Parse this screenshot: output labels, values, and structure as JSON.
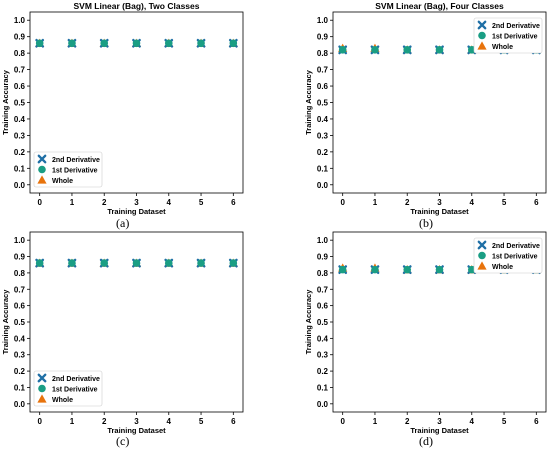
{
  "figure": {
    "marker_colors": {
      "2nd Derivative": "#1f6fa5",
      "1st Derivative": "#1a9e84",
      "Whole": "#e8730c"
    },
    "marker_shapes": {
      "2nd Derivative": "x-cross",
      "1st Derivative": "circle",
      "Whole": "triangle-up"
    }
  },
  "chart_data": [
    {
      "panel_label": "(a)",
      "type": "scatter",
      "title": "SVM Linear (Bag), Two Classes",
      "xlabel": "Training Dataset",
      "ylabel": "Training Accuracy",
      "x": [
        0,
        1,
        2,
        3,
        4,
        5,
        6
      ],
      "xlim": [
        -0.3,
        6.3
      ],
      "ylim": [
        -0.05,
        1.05
      ],
      "xticks": [
        0,
        1,
        2,
        3,
        4,
        5,
        6
      ],
      "yticks": [
        0.0,
        0.1,
        0.2,
        0.3,
        0.4,
        0.5,
        0.6,
        0.7,
        0.8,
        0.9,
        1.0
      ],
      "grid": false,
      "legend_position": "bottom-left",
      "series": [
        {
          "name": "2nd Derivative",
          "values": [
            0.86,
            0.86,
            0.86,
            0.86,
            0.86,
            0.86,
            0.86
          ]
        },
        {
          "name": "1st Derivative",
          "values": [
            0.86,
            0.86,
            0.86,
            0.86,
            0.86,
            0.86,
            0.86
          ]
        },
        {
          "name": "Whole",
          "values": [
            0.86,
            0.86,
            0.86,
            0.86,
            0.86,
            0.86,
            0.86
          ]
        }
      ]
    },
    {
      "panel_label": "(b)",
      "type": "scatter",
      "title": "SVM Linear (Bag), Four Classes",
      "xlabel": "Training Dataset",
      "ylabel": "Training Accuracy",
      "x": [
        0,
        1,
        2,
        3,
        4,
        5,
        6
      ],
      "xlim": [
        -0.3,
        6.3
      ],
      "ylim": [
        -0.05,
        1.05
      ],
      "xticks": [
        0,
        1,
        2,
        3,
        4,
        5,
        6
      ],
      "yticks": [
        0.0,
        0.1,
        0.2,
        0.3,
        0.4,
        0.5,
        0.6,
        0.7,
        0.8,
        0.9,
        1.0
      ],
      "grid": false,
      "legend_position": "top-right",
      "series": [
        {
          "name": "2nd Derivative",
          "values": [
            0.82,
            0.82,
            0.82,
            0.82,
            0.82,
            0.82,
            0.82
          ]
        },
        {
          "name": "1st Derivative",
          "values": [
            0.82,
            0.82,
            0.82,
            0.82,
            0.82,
            0.82,
            0.82
          ]
        },
        {
          "name": "Whole",
          "values": [
            0.83,
            0.83,
            0.82,
            0.82,
            0.82,
            0.82,
            0.82
          ]
        }
      ]
    },
    {
      "panel_label": "(c)",
      "type": "scatter",
      "title": "",
      "xlabel": "Training Dataset",
      "ylabel": "Training Accuracy",
      "x": [
        0,
        1,
        2,
        3,
        4,
        5,
        6
      ],
      "xlim": [
        -0.3,
        6.3
      ],
      "ylim": [
        -0.05,
        1.05
      ],
      "xticks": [
        0,
        1,
        2,
        3,
        4,
        5,
        6
      ],
      "yticks": [
        0.0,
        0.1,
        0.2,
        0.3,
        0.4,
        0.5,
        0.6,
        0.7,
        0.8,
        0.9,
        1.0
      ],
      "grid": false,
      "legend_position": "bottom-left",
      "series": [
        {
          "name": "2nd Derivative",
          "values": [
            0.86,
            0.86,
            0.86,
            0.86,
            0.86,
            0.86,
            0.86
          ]
        },
        {
          "name": "1st Derivative",
          "values": [
            0.86,
            0.86,
            0.86,
            0.86,
            0.86,
            0.86,
            0.86
          ]
        },
        {
          "name": "Whole",
          "values": [
            0.86,
            0.86,
            0.86,
            0.86,
            0.86,
            0.86,
            0.86
          ]
        }
      ]
    },
    {
      "panel_label": "(d)",
      "type": "scatter",
      "title": "",
      "xlabel": "Training Dataset",
      "ylabel": "Training Accuracy",
      "x": [
        0,
        1,
        2,
        3,
        4,
        5,
        6
      ],
      "xlim": [
        -0.3,
        6.3
      ],
      "ylim": [
        -0.05,
        1.05
      ],
      "xticks": [
        0,
        1,
        2,
        3,
        4,
        5,
        6
      ],
      "yticks": [
        0.0,
        0.1,
        0.2,
        0.3,
        0.4,
        0.5,
        0.6,
        0.7,
        0.8,
        0.9,
        1.0
      ],
      "grid": false,
      "legend_position": "top-right",
      "series": [
        {
          "name": "2nd Derivative",
          "values": [
            0.82,
            0.82,
            0.82,
            0.82,
            0.82,
            0.82,
            0.82
          ]
        },
        {
          "name": "1st Derivative",
          "values": [
            0.82,
            0.82,
            0.82,
            0.82,
            0.82,
            0.82,
            0.82
          ]
        },
        {
          "name": "Whole",
          "values": [
            0.83,
            0.83,
            0.82,
            0.82,
            0.82,
            0.82,
            0.82
          ]
        }
      ]
    }
  ]
}
